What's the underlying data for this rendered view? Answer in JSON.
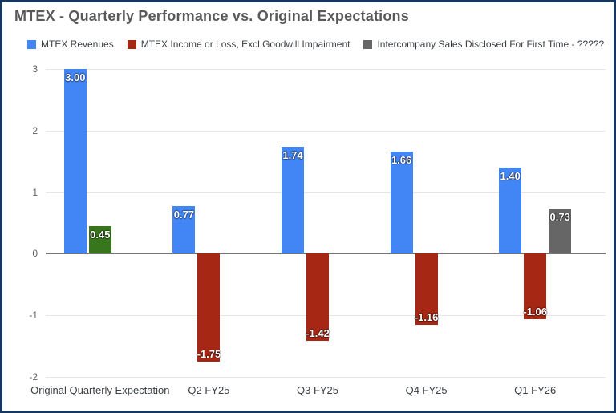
{
  "chart_data": {
    "type": "bar",
    "title": "MTEX - Quarterly Performance vs. Original Expectations",
    "categories": [
      "Original Quarterly Expectation",
      "Q2 FY25",
      "Q3 FY25",
      "Q4 FY25",
      "Q1 FY26"
    ],
    "series": [
      {
        "name": "MTEX Revenues",
        "color": "#4285F4",
        "values": [
          3.0,
          0.77,
          1.74,
          1.66,
          1.4
        ],
        "labels": [
          "3.00",
          "0.77",
          "1.74",
          "1.66",
          "1.40"
        ],
        "point_colors": [
          null,
          null,
          null,
          null,
          null
        ]
      },
      {
        "name": "MTEX Income or Loss, Excl Goodwill Impairment",
        "color": "#A52714",
        "values": [
          0.45,
          -1.75,
          -1.42,
          -1.16,
          -1.06
        ],
        "labels": [
          "0.45",
          "-1.75",
          "-1.42",
          "-1.16",
          "-1.06"
        ],
        "point_colors": [
          "#38761D",
          null,
          null,
          null,
          null
        ]
      },
      {
        "name": "Intercompany Sales Disclosed For First Time - ?????",
        "color": "#666666",
        "values": [
          null,
          null,
          null,
          null,
          0.73
        ],
        "labels": [
          null,
          null,
          null,
          null,
          "0.73"
        ],
        "point_colors": [
          null,
          null,
          null,
          null,
          null
        ]
      }
    ],
    "y_ticks": [
      3,
      2,
      1,
      0,
      -1,
      -2
    ],
    "ylim": [
      -2,
      3
    ],
    "grid": true,
    "legend_position": "top",
    "annotations": "inside-end"
  },
  "colors": {
    "frame_border": "#17375E",
    "background": "#FFFFFF",
    "gridline": "#E6E6E6",
    "zero_line": "#757575",
    "title_text": "#595959",
    "legend_text": "#3C4043",
    "y_axis_text": "#616161",
    "x_axis_text": "#3C4043",
    "annotation_text": "#FFFFFF"
  }
}
